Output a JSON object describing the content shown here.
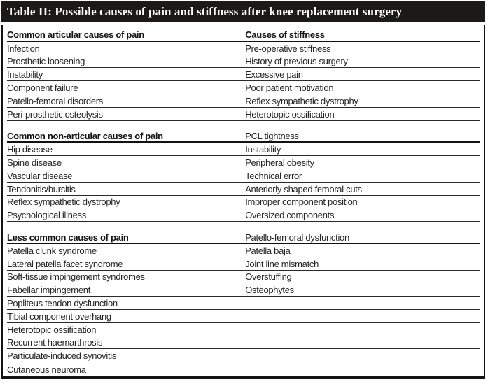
{
  "title": "Table II: Possible causes of pain and stiffness after knee replacement surgery",
  "colors": {
    "title_bar": "#1b1a18",
    "title_text": "#ffffff",
    "body_text": "#242424",
    "rule_line": "#2a2a2a"
  },
  "table": {
    "columns": [
      "Causes of pain",
      "Causes of stiffness"
    ],
    "sections": [
      {
        "id": "articular-causes",
        "rows": [
          {
            "left": "Common articular causes of pain",
            "left_bold": true,
            "right": "Causes of stiffness",
            "right_bold": true,
            "header": true
          },
          {
            "left": "Infection",
            "right": "Pre-operative stiffness"
          },
          {
            "left": "Prosthetic loosening",
            "right": "History of previous surgery"
          },
          {
            "left": "Instability",
            "right": "Excessive pain"
          },
          {
            "left": "Component failure",
            "right": "Poor patient motivation"
          },
          {
            "left": "Patello-femoral disorders",
            "right": "Reflex sympathetic dystrophy"
          },
          {
            "left": "Peri-prosthetic osteolysis",
            "right": "Heterotopic ossification"
          }
        ]
      },
      {
        "id": "non-articular-causes",
        "rows": [
          {
            "left": "Common non-articular causes of pain",
            "left_bold": true,
            "right": "PCL tightness",
            "header": true
          },
          {
            "left": "Hip disease",
            "right": "Instability"
          },
          {
            "left": "Spine disease",
            "right": "Peripheral obesity"
          },
          {
            "left": "Vascular disease",
            "right": "Technical error"
          },
          {
            "left": "Tendonitis/bursitis",
            "right": "Anteriorly shaped femoral cuts"
          },
          {
            "left": "Reflex sympathetic dystrophy",
            "right": "Improper component position"
          },
          {
            "left": "Psychological illness",
            "right": "Oversized components"
          }
        ]
      },
      {
        "id": "less-common-causes",
        "rows": [
          {
            "left": "Less common causes of pain",
            "left_bold": true,
            "right": "Patello-femoral dysfunction",
            "header": true
          },
          {
            "left": "Patella clunk syndrome",
            "right": "Patella baja"
          },
          {
            "left": "Lateral patella facet syndrome",
            "right": "Joint line mismatch"
          },
          {
            "left": "Soft-tissue impingement syndromes",
            "right": "Overstuffing"
          },
          {
            "left": "Fabellar impingement",
            "right": "Osteophytes"
          },
          {
            "left": "Popliteus tendon dysfunction",
            "right": ""
          },
          {
            "left": "Tibial component overhang",
            "right": ""
          },
          {
            "left": "Heterotopic ossification",
            "right": ""
          },
          {
            "left": "Recurrent haemarthrosis",
            "right": ""
          },
          {
            "left": "Particulate-induced synovitis",
            "right": ""
          },
          {
            "left": "Cutaneous neuroma",
            "right": ""
          }
        ]
      }
    ]
  }
}
